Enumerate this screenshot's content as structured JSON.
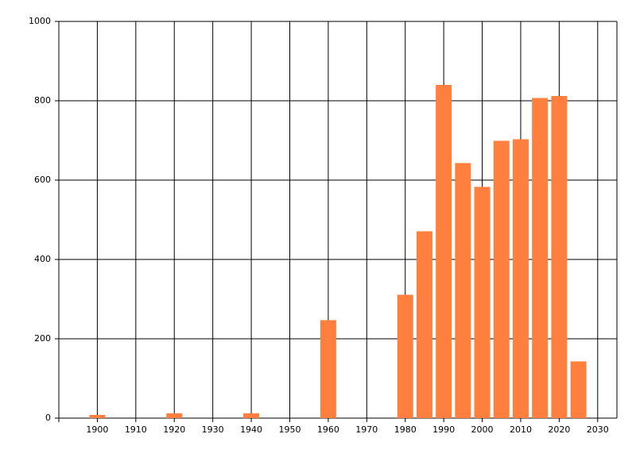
{
  "chart_data": {
    "type": "bar",
    "x": [
      1900,
      1920,
      1940,
      1960,
      1980,
      1985,
      1990,
      1995,
      2000,
      2005,
      2010,
      2015,
      2020,
      2025
    ],
    "values": [
      8,
      12,
      12,
      247,
      311,
      471,
      840,
      643,
      583,
      699,
      703,
      807,
      812,
      143
    ],
    "color": "#ff7f3f",
    "xlim": [
      1890,
      2035
    ],
    "xticks": [
      1900,
      1910,
      1920,
      1930,
      1940,
      1950,
      1960,
      1970,
      1980,
      1990,
      2000,
      2010,
      2020,
      2030
    ],
    "ylim": [
      0,
      1000
    ],
    "yticks": [
      0,
      200,
      400,
      600,
      800,
      1000
    ],
    "grid": true
  }
}
